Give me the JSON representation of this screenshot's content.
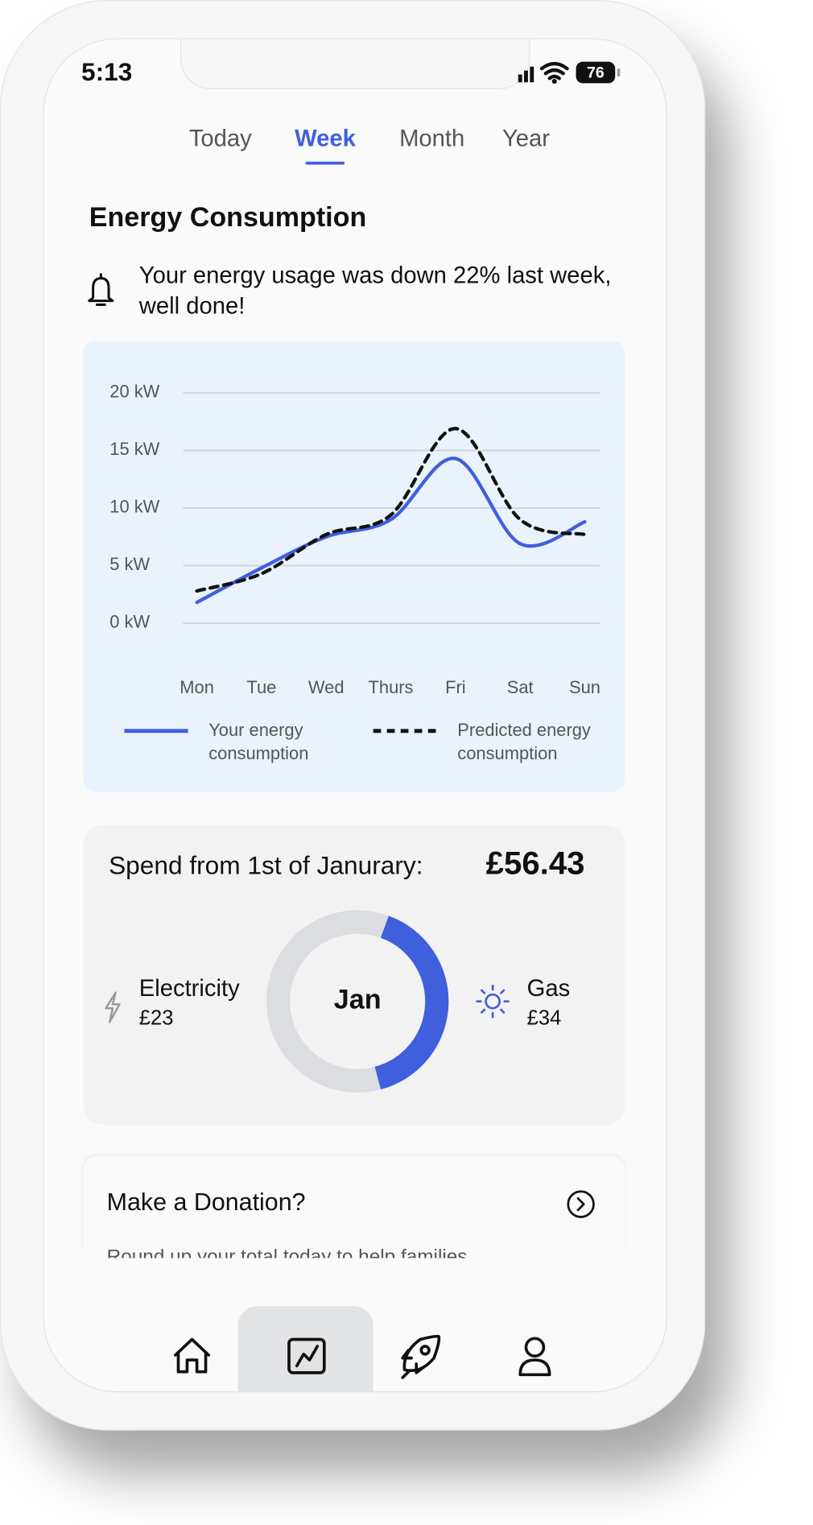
{
  "status_bar": {
    "time": "5:13",
    "battery": "76"
  },
  "tabs": {
    "items": [
      "Today",
      "Week",
      "Month",
      "Year"
    ],
    "active": 1
  },
  "title": "Energy Consumption",
  "notice": "Your energy usage was down 22% last week, well done!",
  "spend": {
    "title": "Spend from 1st of Janurary:",
    "total": "£56.43"
  },
  "chart_data": [
    {
      "type": "line",
      "categories": [
        "Mon",
        "Tue",
        "Wed",
        "Thurs",
        "Fri",
        "Sat",
        "Sun"
      ],
      "series": [
        {
          "name": "Your energy consumption",
          "color": "#3f5fdc",
          "dash": false,
          "values": [
            1.8,
            4.8,
            7.5,
            9,
            14.3,
            6.9,
            8.8
          ]
        },
        {
          "name": "Predicted energy consumption",
          "color": "#111111",
          "dash": true,
          "values": [
            2.8,
            4.3,
            7.7,
            9.4,
            16.9,
            9,
            7.7
          ]
        }
      ],
      "ylim": [
        0,
        20
      ],
      "yticks": [
        {
          "value": 0,
          "label": "0 kW"
        },
        {
          "value": 5,
          "label": "5 kW"
        },
        {
          "value": 10,
          "label": "10 kW"
        },
        {
          "value": 15,
          "label": "15 kW"
        },
        {
          "value": 20,
          "label": "20 kW"
        }
      ],
      "grid": true
    },
    {
      "type": "pie",
      "categories": [
        "Electricity",
        "Gas"
      ],
      "values": [
        23,
        34
      ],
      "value_labels": [
        "£23",
        "£34"
      ],
      "colors": [
        "#3f5fdc",
        "#dcdde0"
      ],
      "center_label": "Jan"
    }
  ],
  "donation": {
    "title": "Make a Donation?",
    "text": "Round up your total today to help families"
  }
}
